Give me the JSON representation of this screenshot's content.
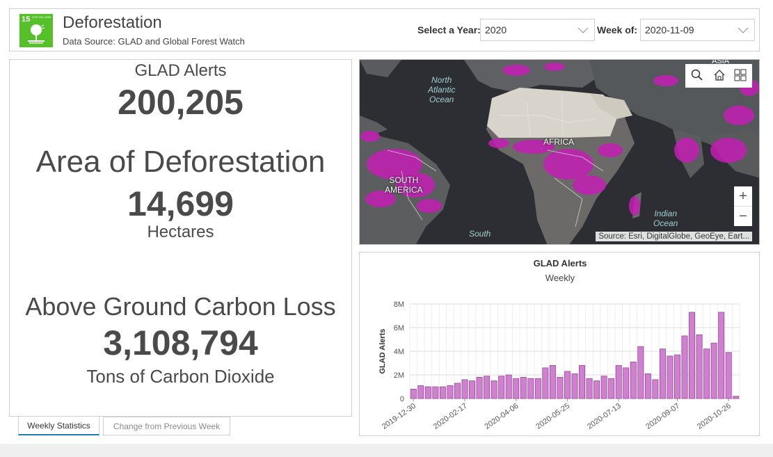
{
  "header": {
    "badge_number": "15",
    "badge_text": "LIFE ON LAND",
    "title": "Deforestation",
    "subtitle": "Data Source: GLAD and Global Forest Watch",
    "year_label": "Select a Year:",
    "year_value": "2020",
    "week_label": "Week of:",
    "week_value": "2020-11-09"
  },
  "stats": {
    "alerts_label": "GLAD Alerts",
    "alerts_value": "200,205",
    "area_label": "Area of Deforestation",
    "area_value": "14,699",
    "area_unit": "Hectares",
    "carbon_label": "Above Ground Carbon Loss",
    "carbon_value": "3,108,794",
    "carbon_unit": "Tons of Carbon Dioxide"
  },
  "tabs": {
    "weekly": "Weekly Statistics",
    "change": "Change from Previous Week"
  },
  "map": {
    "labels": {
      "north_atlantic_1": "North",
      "north_atlantic_2": "Atlantic",
      "north_atlantic_3": "Ocean",
      "africa": "AFRICA",
      "south_america_1": "SOUTH",
      "south_america_2": "AMERICA",
      "indian_1": "Indian",
      "indian_2": "Ocean",
      "south_atlantic": "South",
      "asia": "ASIA"
    },
    "zoom_in": "+",
    "zoom_out": "−",
    "attribution": "Source: Esri, DigitalGlobe, GeoEye, Eart..."
  },
  "colors": {
    "bar": "#d17fd1",
    "bar_stroke": "#8a3f8a",
    "sdg_green": "#56c02b",
    "alert_magenta": "#c41fb5"
  },
  "chart_data": {
    "type": "bar",
    "title": "GLAD Alerts",
    "subtitle": "Weekly",
    "ylabel": "GLAD Alerts",
    "xlabel": "",
    "ylim": [
      0,
      8000000
    ],
    "yticks": [
      "0",
      "2M",
      "4M",
      "6M",
      "8M"
    ],
    "x_tick_labels": [
      "2019-12-30",
      "2020-02-17",
      "2020-04-06",
      "2020-05-25",
      "2020-07-13",
      "2020-09-07",
      "2020-10-26"
    ],
    "x_tick_indices": [
      0,
      7,
      14,
      21,
      28,
      36,
      43
    ],
    "values": [
      800000,
      1100000,
      1000000,
      1000000,
      1000000,
      1100000,
      1300000,
      1600000,
      1500000,
      1800000,
      1900000,
      1500000,
      1900000,
      2000000,
      1700000,
      1800000,
      1700000,
      1700000,
      2600000,
      2800000,
      1800000,
      2300000,
      2100000,
      2800000,
      1700000,
      1500000,
      1900000,
      1700000,
      2800000,
      2600000,
      3100000,
      4400000,
      2100000,
      1600000,
      4200000,
      3600000,
      3700000,
      5300000,
      7300000,
      5400000,
      4200000,
      4700000,
      7300000,
      3900000,
      200000
    ]
  }
}
